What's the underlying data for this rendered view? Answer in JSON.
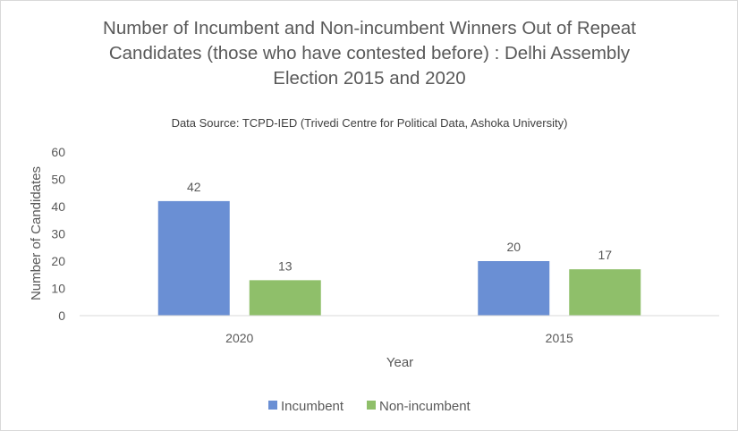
{
  "chart_data": {
    "type": "bar",
    "title_lines": [
      "Number of Incumbent and Non-incumbent Winners Out of Repeat",
      "Candidates (those who have contested before) : Delhi Assembly",
      "Election 2015 and 2020"
    ],
    "subtitle": "Data Source: TCPD-IED (Trivedi Centre for Political Data,  Ashoka University)",
    "xlabel": "Year",
    "ylabel": "Number of Candidates",
    "categories": [
      "2020",
      "2015"
    ],
    "series": [
      {
        "name": "Incumbent",
        "values": [
          42,
          20
        ],
        "color": "#6a8fd4"
      },
      {
        "name": "Non-incumbent",
        "values": [
          13,
          17
        ],
        "color": "#8fbf6a"
      }
    ],
    "ylim": [
      0,
      60
    ],
    "yticks": [
      0,
      10,
      20,
      30,
      40,
      50,
      60
    ],
    "grid": false,
    "legend_position": "bottom"
  }
}
